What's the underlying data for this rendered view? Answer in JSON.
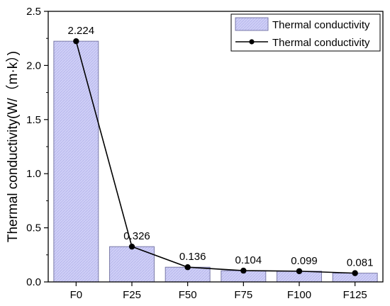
{
  "chart_data": {
    "type": "bar+line",
    "categories": [
      "F0",
      "F25",
      "F50",
      "F75",
      "F100",
      "F125"
    ],
    "series": [
      {
        "name": "Thermal conductivity",
        "kind": "bar",
        "values": [
          2.224,
          0.326,
          0.136,
          0.104,
          0.099,
          0.081
        ]
      },
      {
        "name": "Thermal conductivity",
        "kind": "line",
        "values": [
          2.224,
          0.326,
          0.136,
          0.104,
          0.099,
          0.081
        ]
      }
    ],
    "data_labels": [
      "2.224",
      "0.326",
      "0.136",
      "0.104",
      "0.099",
      "0.081"
    ],
    "ylabel": "Thermal conductivity(W/（m·k）)",
    "xlabel": "",
    "ylim": [
      0,
      2.5
    ],
    "yticks": [
      "0.0",
      "0.5",
      "1.0",
      "1.5",
      "2.0",
      "2.5"
    ],
    "legend_position": "top-right",
    "grid": false,
    "colors": {
      "bar_fill": "#c8c8f5",
      "bar_stroke": "#7a7aa8",
      "line": "#000000",
      "marker": "#000000",
      "axis": "#000000"
    }
  }
}
